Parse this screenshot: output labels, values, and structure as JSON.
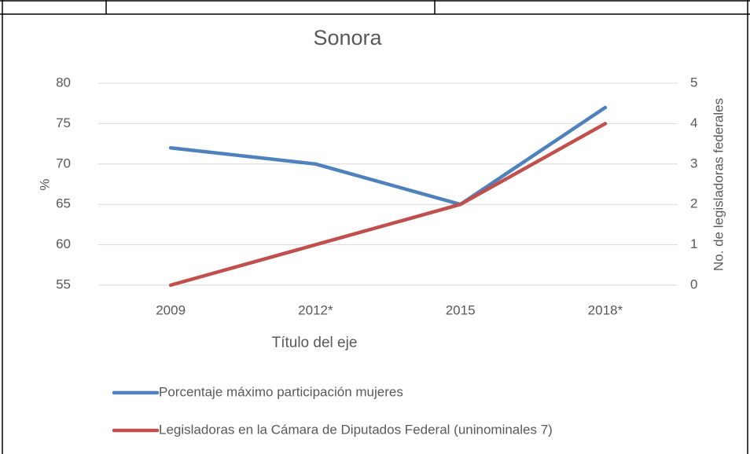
{
  "chart_data": {
    "type": "line",
    "title": "Sonora",
    "categories": [
      "2009",
      "2012*",
      "2015",
      "2018*"
    ],
    "series": [
      {
        "name": "Porcentaje máximo participación mujeres",
        "color": "#4f81bd",
        "values": [
          72,
          70,
          65,
          77
        ]
      },
      {
        "name": "Legisladoras en la Cámara de Diputados Federal (uninominales 7)",
        "color": "#c0504d",
        "values": [
          0,
          1,
          2,
          4
        ],
        "axis": "y2"
      }
    ],
    "ylim": [
      55,
      80
    ],
    "yticks": [
      55,
      60,
      65,
      70,
      75,
      80
    ],
    "y2lim": [
      0,
      5
    ],
    "y2ticks": [
      0,
      1,
      2,
      3,
      4,
      5
    ],
    "ylabel": "%",
    "y2label": "No. de legisladoras federales",
    "xlabel": "Título del eje",
    "grid": true,
    "legend": "bottom"
  }
}
